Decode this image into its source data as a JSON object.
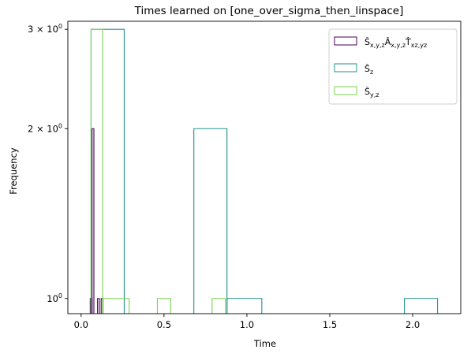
{
  "chart_data": {
    "type": "histogram",
    "title": "Times learned on [one_over_sigma_then_linspace]",
    "xlabel": "Time",
    "ylabel": "Frequency",
    "xlim": [
      -0.08,
      2.29
    ],
    "ylim": [
      0.94,
      3.1
    ],
    "yscale": "log",
    "grid": false,
    "legend_position": "top-right",
    "x_ticks": [
      {
        "value": 0.0,
        "label": "0.0"
      },
      {
        "value": 0.5,
        "label": "0.5"
      },
      {
        "value": 1.0,
        "label": "1.0"
      },
      {
        "value": 1.5,
        "label": "1.5"
      },
      {
        "value": 2.0,
        "label": "2.0"
      }
    ],
    "y_ticks": [
      {
        "value": 1,
        "base": "10",
        "exp": "0"
      },
      {
        "value": 2,
        "base": "2 × 10",
        "exp": "0"
      },
      {
        "value": 3,
        "base": "3 × 10",
        "exp": "0"
      }
    ],
    "series": [
      {
        "name": "Ŝx,y,zÂx,y,zT̂xz,yz",
        "color": "#440154",
        "bins": [
          {
            "x0": 0.055,
            "x1": 0.066,
            "count": 1
          },
          {
            "x0": 0.066,
            "x1": 0.077,
            "count": 2
          },
          {
            "x0": 0.099,
            "x1": 0.11,
            "count": 1
          },
          {
            "x0": 0.121,
            "x1": 0.132,
            "count": 1
          }
        ]
      },
      {
        "name": "Ŝz",
        "color": "#21918c",
        "bins": [
          {
            "x0": 0.06,
            "x1": 0.26,
            "count": 3
          },
          {
            "x0": 0.68,
            "x1": 0.88,
            "count": 2
          },
          {
            "x0": 0.88,
            "x1": 1.09,
            "count": 1
          },
          {
            "x0": 1.95,
            "x1": 2.15,
            "count": 1
          }
        ]
      },
      {
        "name": "Ŝy,z",
        "color": "#7ad151",
        "bins": [
          {
            "x0": 0.06,
            "x1": 0.13,
            "count": 3
          },
          {
            "x0": 0.13,
            "x1": 0.29,
            "count": 1
          },
          {
            "x0": 0.46,
            "x1": 0.54,
            "count": 1
          },
          {
            "x0": 0.79,
            "x1": 0.87,
            "count": 1
          }
        ]
      }
    ]
  }
}
